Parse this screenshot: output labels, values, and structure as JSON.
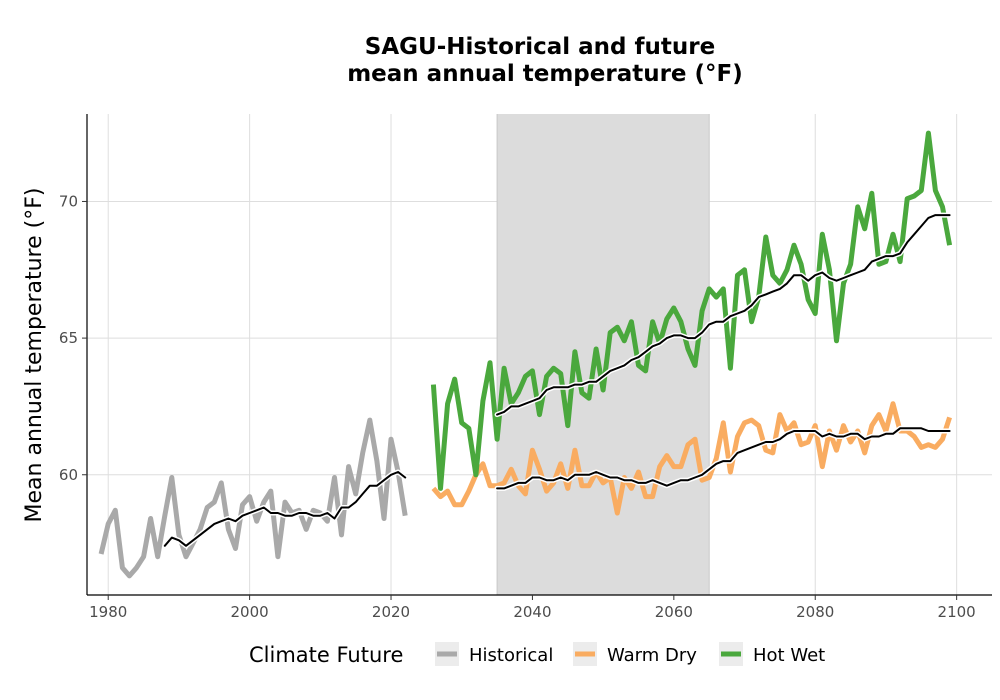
{
  "chart_data": {
    "type": "line",
    "title": "SAGU-Historical and future\nmean annual temperature (°F)",
    "title_lines": [
      "SAGU-Historical and future",
      "mean annual temperature (°F)"
    ],
    "xlabel": "",
    "ylabel": "Mean annual temperature (°F)",
    "xlim": [
      1977,
      2105
    ],
    "ylim": [
      55.6,
      73.2
    ],
    "xticks": [
      1980,
      2000,
      2020,
      2040,
      2060,
      2080,
      2100
    ],
    "yticks": [
      60,
      65,
      70
    ],
    "grid": true,
    "legend": {
      "title": "Climate Future",
      "position": "bottom",
      "entries": [
        "Historical",
        "Warm Dry",
        "Hot Wet"
      ]
    },
    "shaded_region": {
      "x_start": 2035,
      "x_end": 2065,
      "color": "#dcdcdc"
    },
    "colors": {
      "Historical": "#a9a9a9",
      "Warm Dry": "#f9ac61",
      "Hot Wet": "#4aa83d",
      "smooth": "#000000"
    },
    "series": [
      {
        "name": "Historical",
        "x": [
          1979,
          1980,
          1981,
          1982,
          1983,
          1984,
          1985,
          1986,
          1987,
          1988,
          1989,
          1990,
          1991,
          1992,
          1993,
          1994,
          1995,
          1996,
          1997,
          1998,
          1999,
          2000,
          2001,
          2002,
          2003,
          2004,
          2005,
          2006,
          2007,
          2008,
          2009,
          2010,
          2011,
          2012,
          2013,
          2014,
          2015,
          2016,
          2017,
          2018,
          2019,
          2020,
          2021,
          2022
        ],
        "y": [
          57.1,
          58.2,
          58.7,
          56.6,
          56.3,
          56.6,
          57.0,
          58.4,
          57.0,
          58.5,
          59.9,
          57.8,
          57.0,
          57.5,
          58.0,
          58.8,
          59.0,
          59.7,
          58.0,
          57.3,
          58.9,
          59.2,
          58.3,
          59.0,
          59.4,
          57.0,
          59.0,
          58.6,
          58.7,
          58.0,
          58.7,
          58.6,
          58.3,
          59.9,
          57.8,
          60.3,
          59.3,
          60.8,
          62.0,
          60.5,
          58.4,
          61.3,
          60.1,
          58.5
        ]
      },
      {
        "name": "Historical 10-yr mean",
        "x": [
          1988,
          1989,
          1990,
          1991,
          1992,
          1993,
          1994,
          1995,
          1996,
          1997,
          1998,
          1999,
          2000,
          2001,
          2002,
          2003,
          2004,
          2005,
          2006,
          2007,
          2008,
          2009,
          2010,
          2011,
          2012,
          2013,
          2014,
          2015,
          2016,
          2017,
          2018,
          2019,
          2020,
          2021,
          2022
        ],
        "y": [
          57.4,
          57.7,
          57.6,
          57.4,
          57.6,
          57.8,
          58.0,
          58.2,
          58.3,
          58.4,
          58.3,
          58.5,
          58.6,
          58.7,
          58.8,
          58.6,
          58.6,
          58.5,
          58.5,
          58.6,
          58.6,
          58.5,
          58.5,
          58.6,
          58.4,
          58.8,
          58.8,
          59.0,
          59.3,
          59.6,
          59.6,
          59.8,
          60.0,
          60.1,
          59.9
        ]
      },
      {
        "name": "Warm Dry",
        "x": [
          2026,
          2027,
          2028,
          2029,
          2030,
          2031,
          2032,
          2033,
          2034,
          2035,
          2036,
          2037,
          2038,
          2039,
          2040,
          2041,
          2042,
          2043,
          2044,
          2045,
          2046,
          2047,
          2048,
          2049,
          2050,
          2051,
          2052,
          2053,
          2054,
          2055,
          2056,
          2057,
          2058,
          2059,
          2060,
          2061,
          2062,
          2063,
          2064,
          2065,
          2066,
          2067,
          2068,
          2069,
          2070,
          2071,
          2072,
          2073,
          2074,
          2075,
          2076,
          2077,
          2078,
          2079,
          2080,
          2081,
          2082,
          2083,
          2084,
          2085,
          2086,
          2087,
          2088,
          2089,
          2090,
          2091,
          2092,
          2093,
          2094,
          2095,
          2096,
          2097,
          2098,
          2099
        ],
        "y": [
          59.5,
          59.2,
          59.4,
          58.9,
          58.9,
          59.4,
          60.0,
          60.4,
          59.6,
          59.6,
          59.7,
          60.2,
          59.6,
          59.3,
          60.9,
          60.2,
          59.4,
          59.7,
          60.4,
          59.5,
          60.9,
          59.6,
          59.6,
          60.1,
          59.7,
          59.9,
          58.6,
          59.9,
          59.5,
          60.1,
          59.2,
          59.2,
          60.3,
          60.7,
          60.3,
          60.3,
          61.1,
          61.3,
          59.8,
          59.9,
          60.6,
          61.9,
          60.1,
          61.4,
          61.9,
          62.0,
          61.8,
          60.9,
          60.8,
          62.2,
          61.6,
          61.9,
          61.1,
          61.2,
          61.8,
          60.3,
          61.6,
          60.9,
          61.8,
          61.2,
          61.6,
          60.8,
          61.8,
          62.2,
          61.6,
          62.6,
          61.6,
          61.6,
          61.4,
          61.0,
          61.1,
          61.0,
          61.3,
          62.1
        ]
      },
      {
        "name": "Warm Dry 10-yr mean",
        "x": [
          2035,
          2036,
          2037,
          2038,
          2039,
          2040,
          2041,
          2042,
          2043,
          2044,
          2045,
          2046,
          2047,
          2048,
          2049,
          2050,
          2051,
          2052,
          2053,
          2054,
          2055,
          2056,
          2057,
          2058,
          2059,
          2060,
          2061,
          2062,
          2063,
          2064,
          2065,
          2066,
          2067,
          2068,
          2069,
          2070,
          2071,
          2072,
          2073,
          2074,
          2075,
          2076,
          2077,
          2078,
          2079,
          2080,
          2081,
          2082,
          2083,
          2084,
          2085,
          2086,
          2087,
          2088,
          2089,
          2090,
          2091,
          2092,
          2093,
          2094,
          2095,
          2096,
          2097,
          2098,
          2099
        ],
        "y": [
          59.5,
          59.5,
          59.6,
          59.7,
          59.7,
          59.9,
          59.9,
          59.8,
          59.8,
          59.9,
          59.8,
          60.0,
          60.0,
          60.0,
          60.1,
          60.0,
          59.9,
          59.9,
          59.8,
          59.8,
          59.7,
          59.7,
          59.8,
          59.7,
          59.6,
          59.7,
          59.8,
          59.8,
          59.9,
          60.0,
          60.2,
          60.4,
          60.5,
          60.5,
          60.8,
          60.9,
          61.0,
          61.1,
          61.2,
          61.2,
          61.3,
          61.5,
          61.6,
          61.6,
          61.6,
          61.6,
          61.4,
          61.5,
          61.4,
          61.4,
          61.5,
          61.5,
          61.3,
          61.4,
          61.4,
          61.5,
          61.5,
          61.7,
          61.7,
          61.7,
          61.7,
          61.6,
          61.6,
          61.6,
          61.6
        ]
      },
      {
        "name": "Hot Wet",
        "x": [
          2026,
          2027,
          2028,
          2029,
          2030,
          2031,
          2032,
          2033,
          2034,
          2035,
          2036,
          2037,
          2038,
          2039,
          2040,
          2041,
          2042,
          2043,
          2044,
          2045,
          2046,
          2047,
          2048,
          2049,
          2050,
          2051,
          2052,
          2053,
          2054,
          2055,
          2056,
          2057,
          2058,
          2059,
          2060,
          2061,
          2062,
          2063,
          2064,
          2065,
          2066,
          2067,
          2068,
          2069,
          2070,
          2071,
          2072,
          2073,
          2074,
          2075,
          2076,
          2077,
          2078,
          2079,
          2080,
          2081,
          2082,
          2083,
          2084,
          2085,
          2086,
          2087,
          2088,
          2089,
          2090,
          2091,
          2092,
          2093,
          2094,
          2095,
          2096,
          2097,
          2098,
          2099
        ],
        "y": [
          63.3,
          59.5,
          62.6,
          63.5,
          61.9,
          61.7,
          60.0,
          62.7,
          64.1,
          61.3,
          63.9,
          62.6,
          63.0,
          63.6,
          63.8,
          62.2,
          63.6,
          63.9,
          63.7,
          61.8,
          64.5,
          63.0,
          62.8,
          64.6,
          63.1,
          65.2,
          65.4,
          64.9,
          65.6,
          64.0,
          63.8,
          65.6,
          64.8,
          65.7,
          66.1,
          65.6,
          64.6,
          64.0,
          66.0,
          66.8,
          66.5,
          66.8,
          63.9,
          67.3,
          67.5,
          65.6,
          66.5,
          68.7,
          67.3,
          67.0,
          67.5,
          68.4,
          67.7,
          66.4,
          65.9,
          68.8,
          67.5,
          64.9,
          67.0,
          67.7,
          69.8,
          69.0,
          70.3,
          67.7,
          67.8,
          68.8,
          67.8,
          70.1,
          70.2,
          70.4,
          72.5,
          70.4,
          69.8,
          68.4
        ]
      },
      {
        "name": "Hot Wet 10-yr mean",
        "x": [
          2035,
          2036,
          2037,
          2038,
          2039,
          2040,
          2041,
          2042,
          2043,
          2044,
          2045,
          2046,
          2047,
          2048,
          2049,
          2050,
          2051,
          2052,
          2053,
          2054,
          2055,
          2056,
          2057,
          2058,
          2059,
          2060,
          2061,
          2062,
          2063,
          2064,
          2065,
          2066,
          2067,
          2068,
          2069,
          2070,
          2071,
          2072,
          2073,
          2074,
          2075,
          2076,
          2077,
          2078,
          2079,
          2080,
          2081,
          2082,
          2083,
          2084,
          2085,
          2086,
          2087,
          2088,
          2089,
          2090,
          2091,
          2092,
          2093,
          2094,
          2095,
          2096,
          2097,
          2098,
          2099
        ],
        "y": [
          62.2,
          62.3,
          62.5,
          62.5,
          62.6,
          62.7,
          62.8,
          63.1,
          63.2,
          63.2,
          63.2,
          63.3,
          63.3,
          63.4,
          63.4,
          63.6,
          63.8,
          63.9,
          64.0,
          64.2,
          64.3,
          64.5,
          64.7,
          64.8,
          65.0,
          65.1,
          65.1,
          65.0,
          65.0,
          65.2,
          65.5,
          65.6,
          65.6,
          65.8,
          65.9,
          66.0,
          66.2,
          66.5,
          66.6,
          66.7,
          66.8,
          67.0,
          67.3,
          67.3,
          67.1,
          67.3,
          67.4,
          67.2,
          67.1,
          67.2,
          67.3,
          67.4,
          67.5,
          67.8,
          67.9,
          68.0,
          68.0,
          68.1,
          68.5,
          68.8,
          69.1,
          69.4,
          69.5,
          69.5,
          69.5
        ]
      }
    ]
  }
}
